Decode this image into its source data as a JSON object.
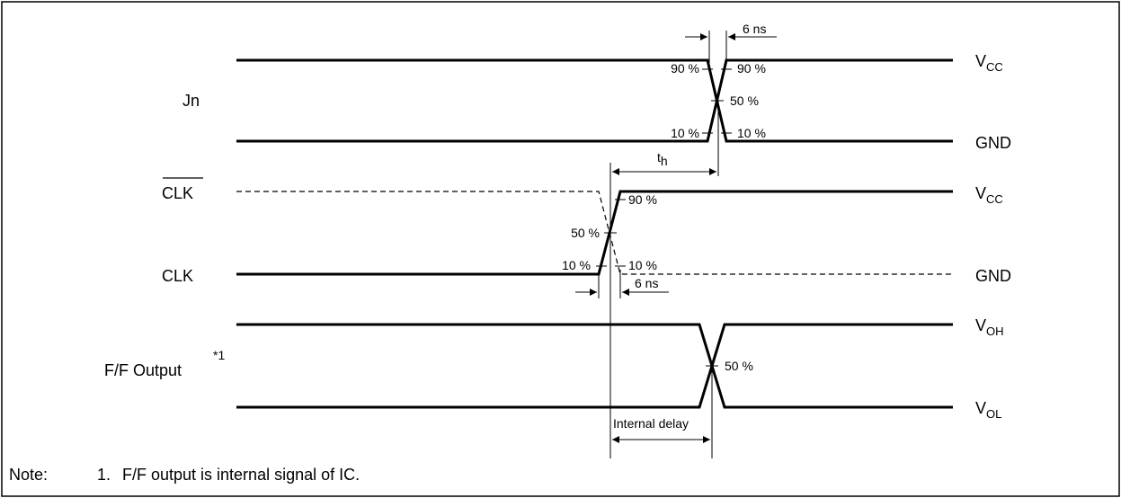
{
  "signals": {
    "jn": "Jn",
    "clk_bar": "CLK",
    "clk": "CLK",
    "ff_output": "F/F Output",
    "ff_footnote_mark": "*1"
  },
  "rails": {
    "vcc_1": {
      "main": "V",
      "sub": "CC"
    },
    "gnd_1": "GND",
    "vcc_2": {
      "main": "V",
      "sub": "CC"
    },
    "gnd_2": "GND",
    "voh": {
      "main": "V",
      "sub": "OH"
    },
    "vol": {
      "main": "V",
      "sub": "OL"
    }
  },
  "annotations": {
    "jn_90_left": "90 %",
    "jn_90_right": "90 %",
    "jn_50": "50 %",
    "jn_10_left": "10 %",
    "jn_10_right": "10 %",
    "jn_transition_time": "6 ns",
    "th": {
      "main": "t",
      "sub": "h"
    },
    "clk_90": "90 %",
    "clk_50": "50 %",
    "clk_10_left": "10 %",
    "clk_10_right": "10 %",
    "clk_transition_time": "6 ns",
    "ff_50": "50 %",
    "internal_delay": "Internal delay"
  },
  "note": {
    "label": "Note:",
    "number": "1.",
    "text": "F/F output is internal signal of IC."
  }
}
